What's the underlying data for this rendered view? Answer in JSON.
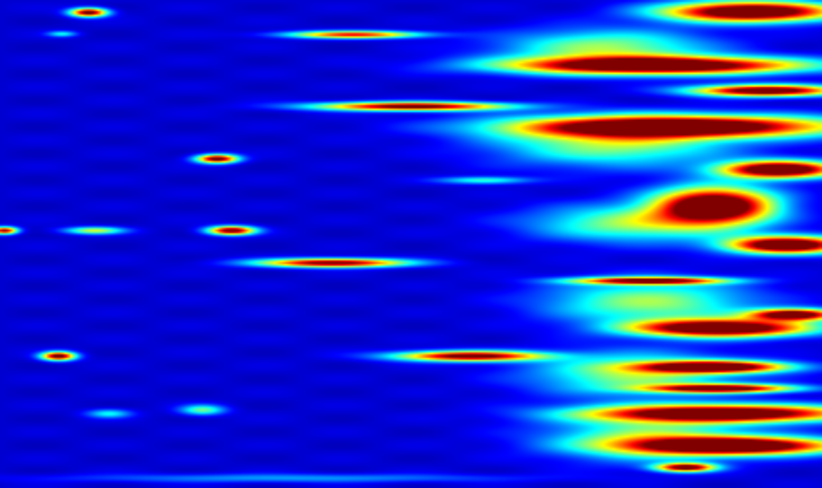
{
  "chart_data": {
    "type": "heatmap",
    "title": "",
    "xlabel": "",
    "ylabel": "",
    "colormap": "jet",
    "value_range": [
      0,
      1
    ],
    "grid": false,
    "legend": "none",
    "columns": 114,
    "rows": 68,
    "background_level": 0.08,
    "hotspots": [
      {
        "col": 12.2,
        "row": 1.6,
        "sx": 2.5,
        "sy": 0.6,
        "v": 1.0
      },
      {
        "col": 8.5,
        "row": 4.6,
        "sx": 2,
        "sy": 0.4,
        "v": 0.3
      },
      {
        "col": 49,
        "row": 4.7,
        "sx": 9,
        "sy": 0.5,
        "v": 0.8
      },
      {
        "col": 30,
        "row": 22,
        "sx": 2.8,
        "sy": 0.6,
        "v": 1.0
      },
      {
        "col": 32,
        "row": 32,
        "sx": 3.2,
        "sy": 0.6,
        "v": 1.0
      },
      {
        "col": 0.5,
        "row": 32,
        "sx": 1.8,
        "sy": 0.5,
        "v": 0.9
      },
      {
        "col": 13,
        "row": 32,
        "sx": 4,
        "sy": 0.5,
        "v": 0.5
      },
      {
        "col": 46,
        "row": 36.5,
        "sx": 10,
        "sy": 0.6,
        "v": 1.0
      },
      {
        "col": 57,
        "row": 14.7,
        "sx": 13,
        "sy": 0.6,
        "v": 1.0
      },
      {
        "col": 67,
        "row": 25,
        "sx": 6,
        "sy": 0.5,
        "v": 0.35
      },
      {
        "col": 8,
        "row": 49.5,
        "sx": 2.3,
        "sy": 0.6,
        "v": 1.0
      },
      {
        "col": 65,
        "row": 49.5,
        "sx": 10,
        "sy": 0.7,
        "v": 1.0
      },
      {
        "col": 28,
        "row": 57,
        "sx": 3,
        "sy": 0.7,
        "v": 0.4
      },
      {
        "col": 15,
        "row": 57.5,
        "sx": 3,
        "sy": 0.6,
        "v": 0.3
      },
      {
        "col": 90,
        "row": 39,
        "sx": 10,
        "sy": 0.5,
        "v": 1.0
      },
      {
        "col": 95,
        "row": 65,
        "sx": 4,
        "sy": 0.6,
        "v": 1.0
      },
      {
        "col": 104,
        "row": 1.5,
        "sx": 12,
        "sy": 1.4,
        "v": 1.2
      },
      {
        "col": 91,
        "row": 9,
        "sx": 20,
        "sy": 1.2,
        "v": 1.2
      },
      {
        "col": 106,
        "row": 12.5,
        "sx": 10,
        "sy": 0.8,
        "v": 1.1
      },
      {
        "col": 94,
        "row": 17.5,
        "sx": 22,
        "sy": 1.5,
        "v": 1.2
      },
      {
        "col": 108,
        "row": 23.5,
        "sx": 8,
        "sy": 1.2,
        "v": 1.2
      },
      {
        "col": 99,
        "row": 28.5,
        "sx": 8,
        "sy": 2.5,
        "v": 1.2
      },
      {
        "col": 109,
        "row": 34,
        "sx": 8,
        "sy": 1.2,
        "v": 1.2
      },
      {
        "col": 100,
        "row": 45.6,
        "sx": 12,
        "sy": 1.2,
        "v": 1.2
      },
      {
        "col": 110,
        "row": 43.7,
        "sx": 6,
        "sy": 0.8,
        "v": 1.1
      },
      {
        "col": 99,
        "row": 51,
        "sx": 10,
        "sy": 0.8,
        "v": 1.1
      },
      {
        "col": 100,
        "row": 54,
        "sx": 10,
        "sy": 0.6,
        "v": 1.0
      },
      {
        "col": 100,
        "row": 57.5,
        "sx": 18,
        "sy": 1.2,
        "v": 1.2
      },
      {
        "col": 102,
        "row": 62,
        "sx": 14,
        "sy": 1.2,
        "v": 1.2
      },
      {
        "col": 84,
        "row": 6.5,
        "sx": 14,
        "sy": 2.5,
        "v": 0.45
      },
      {
        "col": 85,
        "row": 20,
        "sx": 16,
        "sy": 3,
        "v": 0.45
      },
      {
        "col": 88,
        "row": 31,
        "sx": 14,
        "sy": 2.5,
        "v": 0.45
      },
      {
        "col": 90,
        "row": 42,
        "sx": 14,
        "sy": 3,
        "v": 0.45
      },
      {
        "col": 88,
        "row": 52,
        "sx": 14,
        "sy": 3,
        "v": 0.45
      },
      {
        "col": 90,
        "row": 61,
        "sx": 14,
        "sy": 3,
        "v": 0.45
      },
      {
        "col": 40,
        "row": 66.5,
        "sx": 30,
        "sy": 0.6,
        "v": 0.2
      }
    ]
  }
}
